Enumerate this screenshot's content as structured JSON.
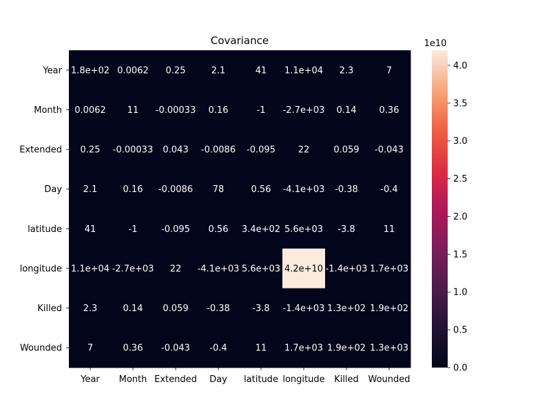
{
  "chart_data": {
    "type": "heatmap",
    "title": "Covariance",
    "categories": [
      "Year",
      "Month",
      "Extended",
      "Day",
      "latitude",
      "longitude",
      "Killed",
      "Wounded"
    ],
    "row_labels": [
      "Year",
      "Month",
      "Extended",
      "Day",
      "latitude",
      "longitude",
      "Killed",
      "Wounded"
    ],
    "col_labels": [
      "Year",
      "Month",
      "Extended",
      "Day",
      "latitude",
      "longitude",
      "Killed",
      "Wounded"
    ],
    "values": [
      [
        180,
        0.0062,
        0.25,
        2.1,
        41,
        11000,
        2.3,
        7
      ],
      [
        0.0062,
        11,
        -0.00033,
        0.16,
        -1,
        -2700,
        0.14,
        0.36
      ],
      [
        0.25,
        -0.00033,
        0.043,
        -0.0086,
        -0.095,
        22,
        0.059,
        -0.043
      ],
      [
        2.1,
        0.16,
        -0.0086,
        78,
        0.56,
        -4100,
        -0.38,
        -0.4
      ],
      [
        41,
        -1,
        -0.095,
        0.56,
        340,
        5600,
        -3.8,
        11
      ],
      [
        11000,
        -2700,
        22,
        -4100,
        5600,
        42000000000,
        -1400,
        1700
      ],
      [
        2.3,
        0.14,
        0.059,
        -0.38,
        -3.8,
        -1400,
        130,
        190
      ],
      [
        7,
        0.36,
        -0.043,
        -0.4,
        11,
        1700,
        190,
        1300
      ]
    ],
    "annotations": [
      [
        "1.8e+02",
        "0.0062",
        "0.25",
        "2.1",
        "41",
        "1.1e+04",
        "2.3",
        "7"
      ],
      [
        "0.0062",
        "11",
        "-0.00033",
        "0.16",
        "-1",
        "-2.7e+03",
        "0.14",
        "0.36"
      ],
      [
        "0.25",
        "-0.00033",
        "0.043",
        "-0.0086",
        "-0.095",
        "22",
        "0.059",
        "-0.043"
      ],
      [
        "2.1",
        "0.16",
        "-0.0086",
        "78",
        "0.56",
        "-4.1e+03",
        "-0.38",
        "-0.4"
      ],
      [
        "41",
        "-1",
        "-0.095",
        "0.56",
        "3.4e+02",
        "5.6e+03",
        "-3.8",
        "11"
      ],
      [
        "1.1e+04",
        "-2.7e+03",
        "22",
        "-4.1e+03",
        "5.6e+03",
        "4.2e+10",
        "-1.4e+03",
        "1.7e+03"
      ],
      [
        "2.3",
        "0.14",
        "0.059",
        "-0.38",
        "-3.8",
        "-1.4e+03",
        "1.3e+02",
        "1.9e+02"
      ],
      [
        "7",
        "0.36",
        "-0.043",
        "-0.4",
        "11",
        "1.7e+03",
        "1.9e+02",
        "1.3e+03"
      ]
    ],
    "colorbar": {
      "colormap": "rocket",
      "vmin": 0,
      "vmax": 42000000000,
      "scale_label": "1e10",
      "ticks": [
        0.0,
        0.5,
        1.0,
        1.5,
        2.0,
        2.5,
        3.0,
        3.5,
        4.0
      ],
      "tick_labels": [
        "0.0",
        "0.5",
        "1.0",
        "1.5",
        "2.0",
        "2.5",
        "3.0",
        "3.5",
        "4.0"
      ]
    },
    "legend": "colorbar-right",
    "grid": false
  }
}
